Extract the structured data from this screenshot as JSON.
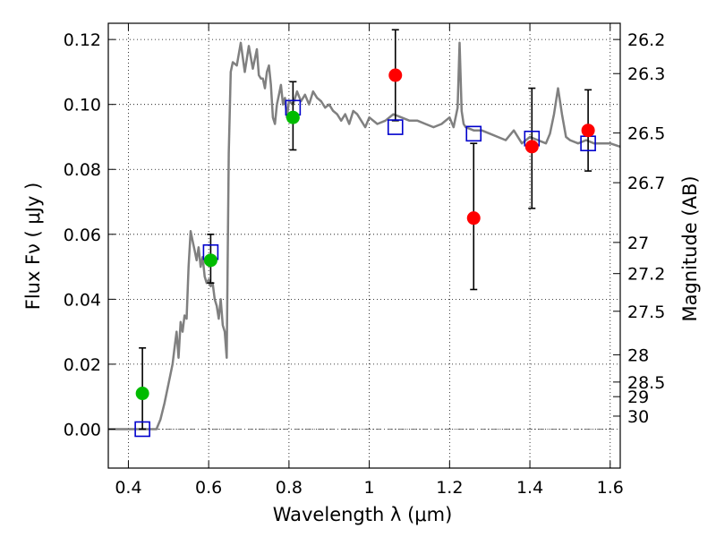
{
  "chart_data": {
    "type": "scatter",
    "xlabel": "Wavelength  λ (μm)",
    "ylabel": "Flux  Fν  ( μJy )",
    "y2label": "Magnitude (AB)",
    "xlim": [
      0.35,
      1.625
    ],
    "ylim": [
      -0.012,
      0.125
    ],
    "grid": true,
    "xticks": [
      0.4,
      0.6,
      0.8,
      1.0,
      1.2,
      1.4,
      1.6
    ],
    "xtick_labels": [
      "0.4",
      "0.6",
      "0.8",
      "1",
      "1.2",
      "1.4",
      "1.6"
    ],
    "yticks": [
      0.0,
      0.02,
      0.04,
      0.06,
      0.08,
      0.1,
      0.12
    ],
    "ytick_labels": [
      "0.00",
      "0.02",
      "0.04",
      "0.06",
      "0.08",
      "0.10",
      "0.12"
    ],
    "mag_ticks": [
      {
        "label": "26.2",
        "y": 0.12
      },
      {
        "label": "26.3",
        "y": 0.1095
      },
      {
        "label": "26.5",
        "y": 0.0912
      },
      {
        "label": "26.7",
        "y": 0.0759
      },
      {
        "label": "27",
        "y": 0.0575
      },
      {
        "label": "27.2",
        "y": 0.0479
      },
      {
        "label": "27.5",
        "y": 0.0363
      },
      {
        "label": "28",
        "y": 0.0229
      },
      {
        "label": "28.5",
        "y": 0.0145
      },
      {
        "label": "29",
        "y": 0.01
      },
      {
        "label": "30",
        "y": 0.004
      }
    ],
    "series": [
      {
        "type": "line",
        "color": "#808080",
        "x": [
          0.35,
          0.47,
          0.48,
          0.49,
          0.5,
          0.51,
          0.515,
          0.52,
          0.525,
          0.53,
          0.535,
          0.54,
          0.545,
          0.55,
          0.555,
          0.56,
          0.565,
          0.57,
          0.575,
          0.58,
          0.585,
          0.59,
          0.595,
          0.6,
          0.605,
          0.61,
          0.615,
          0.62,
          0.625,
          0.63,
          0.635,
          0.64,
          0.645,
          0.65,
          0.655,
          0.66,
          0.67,
          0.68,
          0.69,
          0.7,
          0.71,
          0.72,
          0.725,
          0.73,
          0.735,
          0.74,
          0.745,
          0.75,
          0.755,
          0.76,
          0.765,
          0.77,
          0.775,
          0.78,
          0.785,
          0.79,
          0.795,
          0.8,
          0.81,
          0.82,
          0.83,
          0.84,
          0.85,
          0.86,
          0.87,
          0.88,
          0.89,
          0.9,
          0.91,
          0.92,
          0.93,
          0.94,
          0.95,
          0.96,
          0.97,
          0.98,
          0.99,
          1.0,
          1.02,
          1.04,
          1.06,
          1.08,
          1.1,
          1.12,
          1.14,
          1.16,
          1.18,
          1.2,
          1.21,
          1.22,
          1.225,
          1.23,
          1.235,
          1.24,
          1.26,
          1.28,
          1.3,
          1.32,
          1.34,
          1.36,
          1.38,
          1.4,
          1.42,
          1.44,
          1.45,
          1.46,
          1.47,
          1.48,
          1.49,
          1.5,
          1.52,
          1.54,
          1.56,
          1.58,
          1.6,
          1.625
        ],
        "y": [
          0.0,
          0.0,
          0.003,
          0.008,
          0.014,
          0.02,
          0.025,
          0.03,
          0.022,
          0.033,
          0.03,
          0.035,
          0.034,
          0.05,
          0.061,
          0.058,
          0.055,
          0.052,
          0.056,
          0.05,
          0.053,
          0.047,
          0.045,
          0.046,
          0.044,
          0.045,
          0.04,
          0.038,
          0.034,
          0.04,
          0.032,
          0.03,
          0.022,
          0.085,
          0.11,
          0.113,
          0.112,
          0.119,
          0.11,
          0.118,
          0.111,
          0.117,
          0.109,
          0.108,
          0.108,
          0.105,
          0.11,
          0.112,
          0.106,
          0.096,
          0.094,
          0.1,
          0.103,
          0.106,
          0.1,
          0.102,
          0.096,
          0.101,
          0.1,
          0.104,
          0.101,
          0.103,
          0.1,
          0.104,
          0.102,
          0.101,
          0.099,
          0.1,
          0.098,
          0.097,
          0.095,
          0.097,
          0.094,
          0.098,
          0.097,
          0.095,
          0.093,
          0.096,
          0.094,
          0.095,
          0.097,
          0.096,
          0.095,
          0.095,
          0.094,
          0.093,
          0.094,
          0.096,
          0.093,
          0.099,
          0.119,
          0.098,
          0.094,
          0.093,
          0.092,
          0.092,
          0.091,
          0.09,
          0.089,
          0.092,
          0.088,
          0.09,
          0.089,
          0.088,
          0.091,
          0.097,
          0.105,
          0.097,
          0.09,
          0.089,
          0.088,
          0.089,
          0.088,
          0.088,
          0.088,
          0.087
        ]
      },
      {
        "type": "squares",
        "color": "#0000cc",
        "x": [
          0.435,
          0.605,
          0.81,
          1.065,
          1.26,
          1.405,
          1.545
        ],
        "y": [
          0.0,
          0.0545,
          0.099,
          0.093,
          0.091,
          0.0895,
          0.088
        ]
      },
      {
        "type": "points",
        "color": "#00bb00",
        "x": [
          0.435,
          0.605,
          0.81
        ],
        "y": [
          0.011,
          0.052,
          0.096
        ],
        "err": [
          [
            0.0,
            0.025
          ],
          [
            0.045,
            0.06
          ],
          [
            0.086,
            0.107
          ]
        ]
      },
      {
        "type": "points",
        "color": "#ff0000",
        "x": [
          1.065,
          1.26,
          1.405,
          1.545
        ],
        "y": [
          0.109,
          0.065,
          0.087,
          0.092
        ],
        "err": [
          [
            0.095,
            0.123
          ],
          [
            0.043,
            0.088
          ],
          [
            0.068,
            0.105
          ],
          [
            0.0795,
            0.1045
          ]
        ]
      }
    ]
  }
}
